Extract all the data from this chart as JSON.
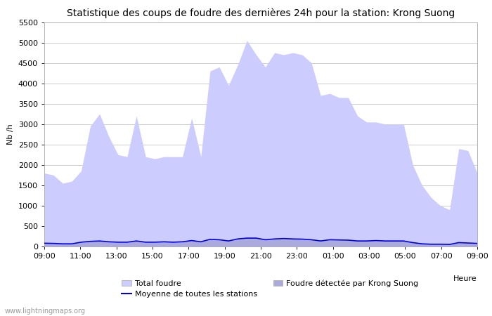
{
  "title": "Statistique des coups de foudre des dernières 24h pour la station: Krong Suong",
  "xlabel": "Heure",
  "ylabel": "Nb /h",
  "ylim": [
    0,
    5500
  ],
  "yticks": [
    0,
    500,
    1000,
    1500,
    2000,
    2500,
    3000,
    3500,
    4000,
    4500,
    5000,
    5500
  ],
  "xtick_labels": [
    "09:00",
    "11:00",
    "13:00",
    "15:00",
    "17:00",
    "19:00",
    "21:00",
    "23:00",
    "01:00",
    "03:00",
    "05:00",
    "07:00",
    "09:00"
  ],
  "background_color": "#ffffff",
  "plot_bg_color": "#ffffff",
  "grid_color": "#cccccc",
  "watermark": "www.lightningmaps.org",
  "fill_total_color": "#ccccff",
  "fill_station_color": "#aaaadd",
  "line_mean_color": "#0000dd",
  "total_foudre": [
    1800,
    1750,
    1550,
    1600,
    1850,
    2950,
    3250,
    2700,
    2250,
    2200,
    3200,
    2200,
    2150,
    2200,
    2200,
    2200,
    3150,
    2200,
    4300,
    4400,
    3950,
    4450,
    5050,
    4700,
    4400,
    4750,
    4700,
    4750,
    4700,
    4500,
    3700,
    3750,
    3650,
    3650,
    3200,
    3050,
    3050,
    3000,
    3000,
    3000,
    2000,
    1500,
    1200,
    1000,
    900,
    2400,
    2350,
    1800
  ],
  "station_foudre": [
    80,
    70,
    60,
    60,
    100,
    120,
    130,
    110,
    100,
    100,
    130,
    100,
    100,
    110,
    100,
    110,
    140,
    110,
    170,
    160,
    130,
    180,
    200,
    200,
    160,
    180,
    190,
    180,
    175,
    160,
    130,
    160,
    155,
    150,
    130,
    130,
    140,
    130,
    130,
    130,
    90,
    60,
    50,
    50,
    45,
    90,
    80,
    70
  ],
  "mean_line": [
    80,
    75,
    65,
    65,
    105,
    125,
    135,
    115,
    105,
    105,
    135,
    105,
    105,
    115,
    105,
    115,
    145,
    115,
    175,
    165,
    135,
    185,
    205,
    205,
    165,
    185,
    195,
    185,
    180,
    165,
    135,
    165,
    160,
    155,
    135,
    135,
    145,
    135,
    135,
    135,
    95,
    65,
    55,
    55,
    50,
    95,
    85,
    75
  ],
  "n_points": 48,
  "title_fontsize": 10,
  "tick_fontsize": 8,
  "label_fontsize": 8
}
